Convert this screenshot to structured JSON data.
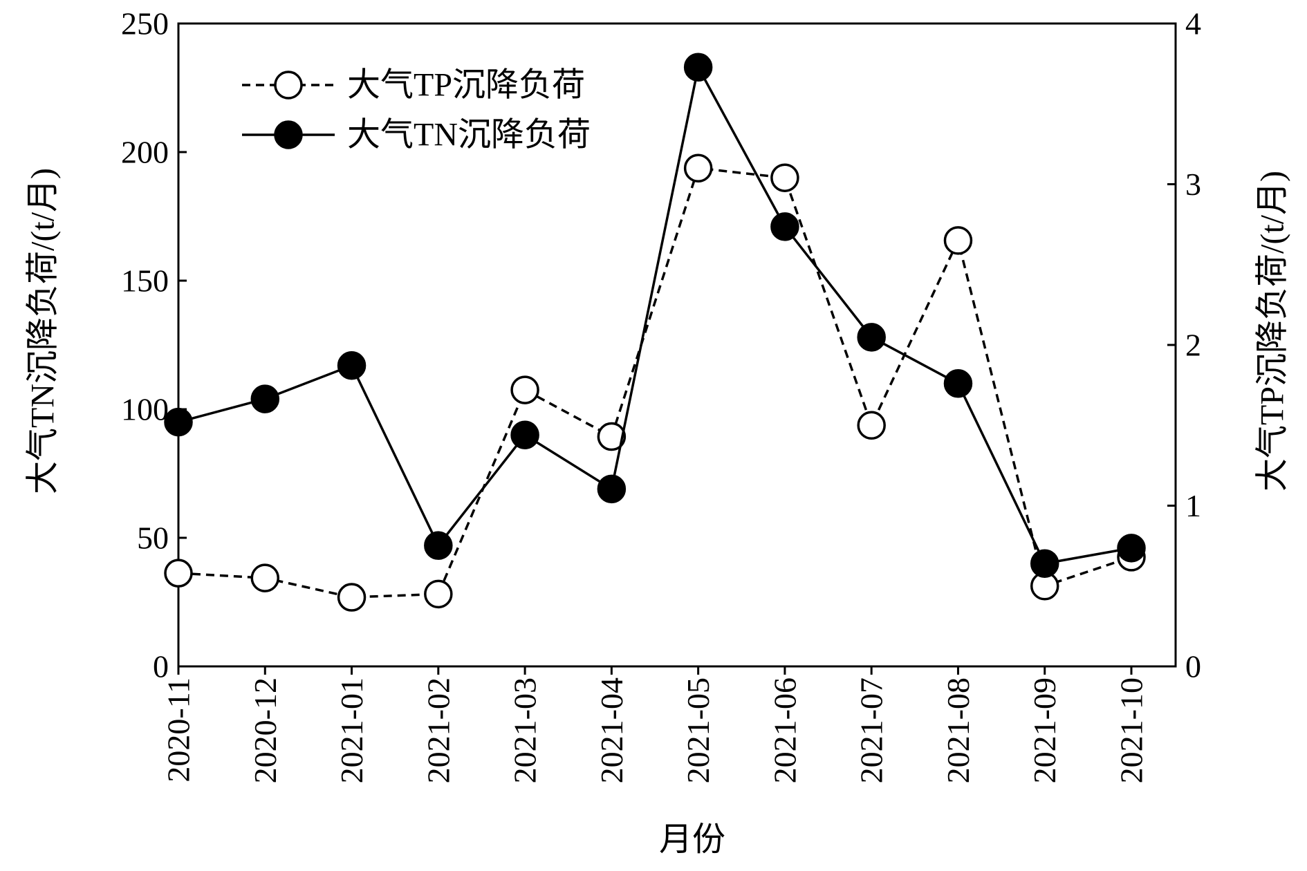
{
  "chart_data": {
    "type": "line",
    "categories": [
      "2020-11",
      "2020-12",
      "2021-01",
      "2021-02",
      "2021-03",
      "2021-04",
      "2021-05",
      "2021-06",
      "2021-07",
      "2021-08",
      "2021-09",
      "2021-10"
    ],
    "xlabel": "月份",
    "ylabel_left": "大气TN沉降负荷/(t/月)",
    "ylabel_right": "大气TP沉降负荷/(t/月)",
    "ylim_left": [
      0,
      250
    ],
    "yticks_left": [
      0,
      50,
      100,
      150,
      200,
      250
    ],
    "ylim_right": [
      0,
      4
    ],
    "yticks_right": [
      0,
      1,
      2,
      3,
      4
    ],
    "grid": false,
    "legend_position": "top-left",
    "series": [
      {
        "name": "大气TP沉降负荷",
        "axis": "right",
        "line_style": "dashed",
        "marker": "open-circle",
        "color": "#000000",
        "values": [
          0.58,
          0.55,
          0.43,
          0.45,
          1.72,
          1.43,
          3.1,
          3.04,
          1.5,
          2.65,
          0.5,
          0.68
        ]
      },
      {
        "name": "大气TN沉降负荷",
        "axis": "left",
        "line_style": "solid",
        "marker": "filled-circle",
        "color": "#000000",
        "values": [
          95,
          104,
          117,
          47,
          90,
          69,
          233,
          171,
          128,
          110,
          40,
          46
        ]
      }
    ]
  }
}
